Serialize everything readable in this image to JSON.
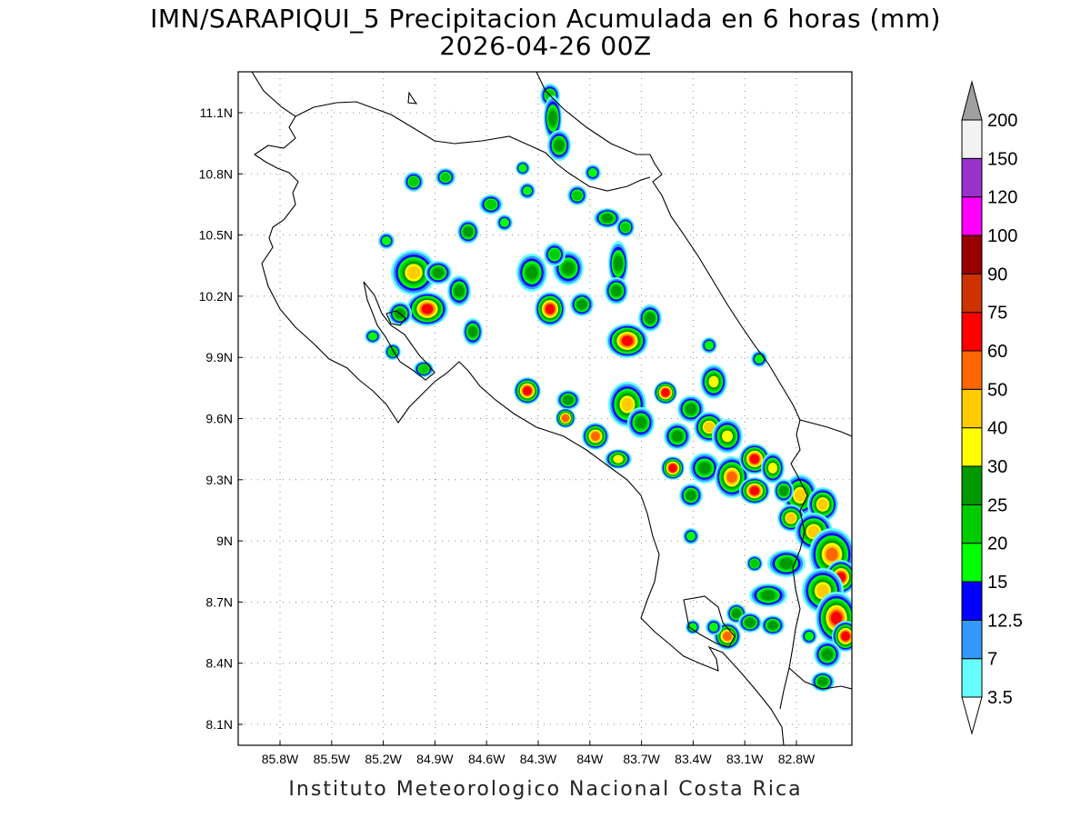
{
  "title": {
    "line1": "IMN/SARAPIQUI_5 Precipitacion Acumulada en 6 horas (mm)",
    "line2": "2026-04-26 00Z"
  },
  "footer": "Instituto Meteorologico Nacional Costa Rica",
  "axes": {
    "lon_ticks": [
      "85.8W",
      "85.5W",
      "85.2W",
      "84.9W",
      "84.6W",
      "84.3W",
      "84W",
      "83.7W",
      "83.4W",
      "83.1W",
      "82.8W"
    ],
    "lat_ticks": [
      "11.1N",
      "10.8N",
      "10.5N",
      "10.2N",
      "9.9N",
      "9.6N",
      "9.3N",
      "9N",
      "8.7N",
      "8.4N",
      "8.1N"
    ]
  },
  "colorbar": {
    "levels": [
      "3.5",
      "7",
      "12.5",
      "15",
      "20",
      "25",
      "30",
      "40",
      "50",
      "60",
      "75",
      "90",
      "100",
      "120",
      "150",
      "200"
    ],
    "colors": [
      "#66ffff",
      "#3399ff",
      "#0000ff",
      "#00ff00",
      "#00cc00",
      "#009900",
      "#ffff00",
      "#ffcc00",
      "#ff6600",
      "#ff0000",
      "#cc3300",
      "#990000",
      "#ff00ff",
      "#9933cc",
      "#f2f2f2",
      "#a0a0a0"
    ]
  },
  "map": {
    "region": "Costa Rica",
    "grid": true,
    "coastline": true
  }
}
